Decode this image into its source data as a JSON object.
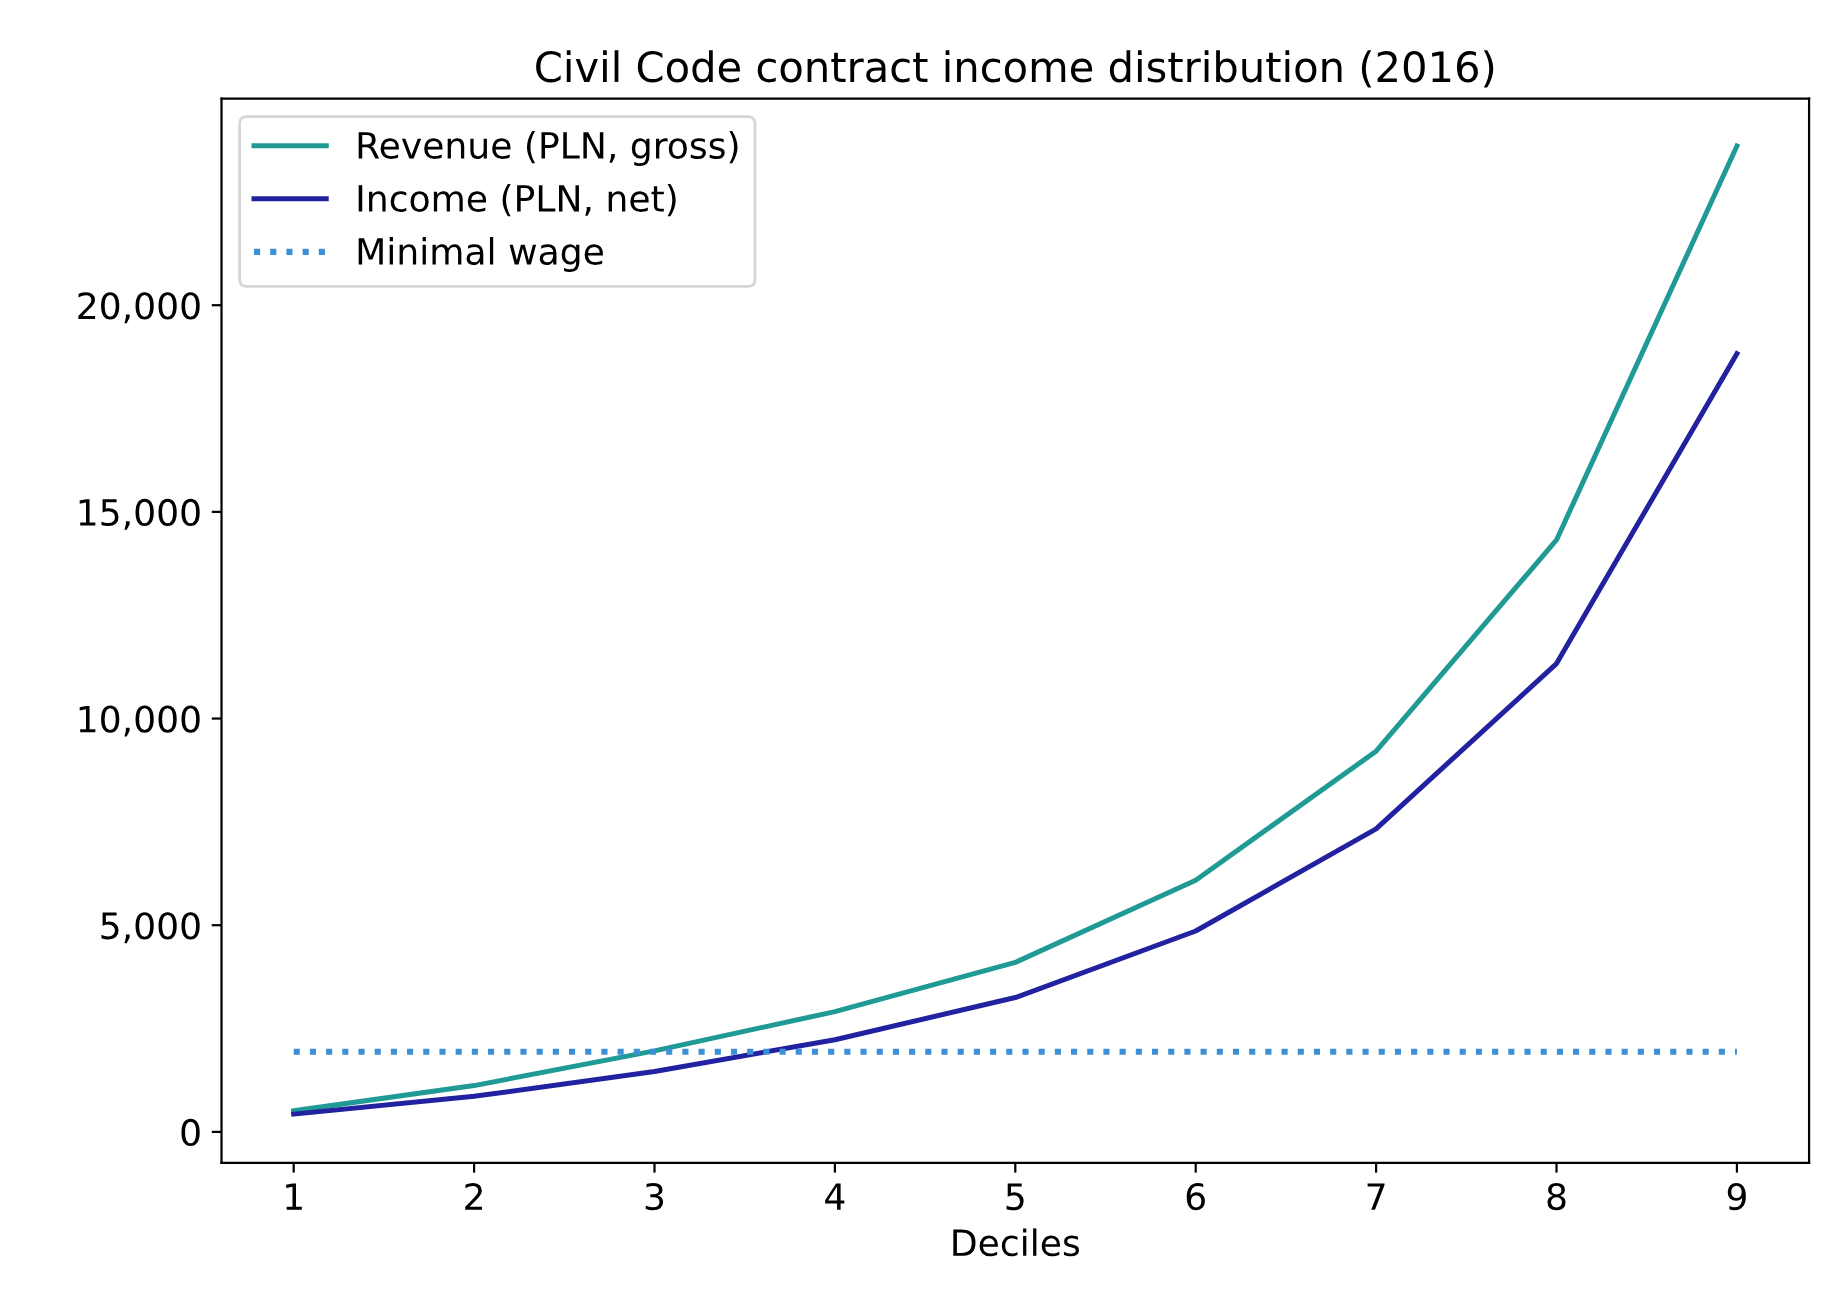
{
  "chart_data": {
    "type": "line",
    "title": "Civil Code contract income distribution (2016)",
    "xlabel": "Deciles",
    "x": [
      1,
      2,
      3,
      4,
      5,
      6,
      7,
      8,
      9
    ],
    "series": [
      {
        "name": "Revenue (PLN, gross)",
        "color": "#1f9a95",
        "values": [
          510,
          1120,
          1960,
          2910,
          4100,
          6090,
          9210,
          14320,
          23850
        ]
      },
      {
        "name": "Income (PLN, net)",
        "color": "#2222a0",
        "values": [
          430,
          860,
          1460,
          2230,
          3250,
          4860,
          7330,
          11330,
          18830
        ]
      },
      {
        "name": "Minimal wage",
        "color": "#3d8fd6",
        "line_style": "dotted",
        "values": [
          1940,
          1940,
          1940,
          1940,
          1940,
          1940,
          1940,
          1940,
          1940
        ]
      }
    ],
    "xlim": [
      0.6,
      9.4
    ],
    "xticks": [
      1,
      2,
      3,
      4,
      5,
      6,
      7,
      8,
      9
    ],
    "ylim": [
      -750,
      25000
    ],
    "yticks": [
      {
        "value": 0,
        "label": "0"
      },
      {
        "value": 5000,
        "label": "5,000"
      },
      {
        "value": 10000,
        "label": "10,000"
      },
      {
        "value": 15000,
        "label": "15,000"
      },
      {
        "value": 20000,
        "label": "20,000"
      }
    ],
    "grid": false,
    "legend": "top left",
    "marker": "none",
    "line_style": "solid"
  }
}
